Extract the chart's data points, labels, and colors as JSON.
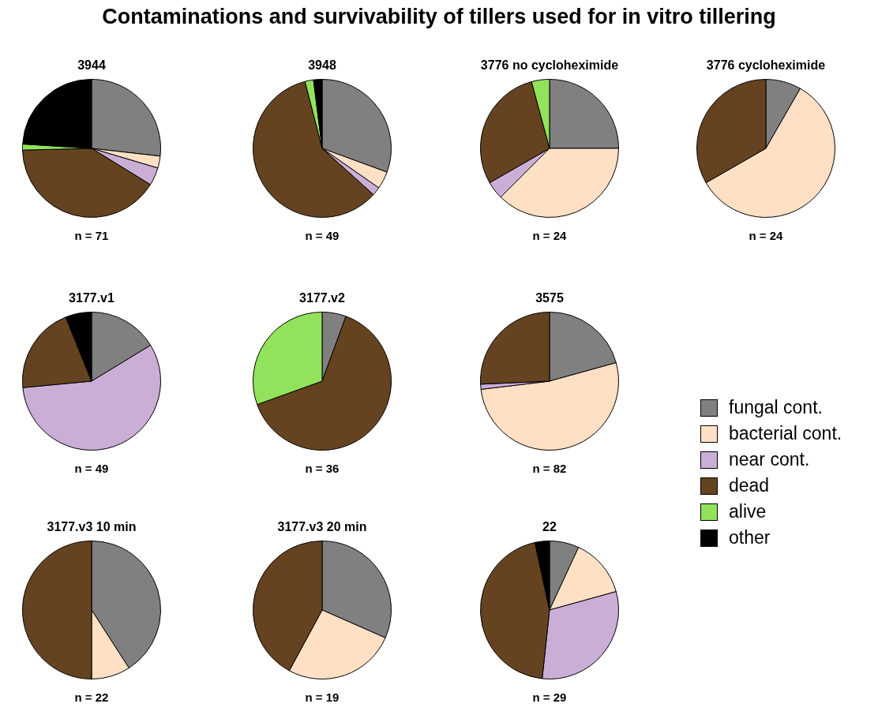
{
  "chart_data": [
    {
      "type": "pie",
      "title": "3944",
      "categories": [
        null,
        null,
        null,
        null,
        null,
        null
      ],
      "values": [
        26.8,
        2.8,
        4.2,
        40.8,
        1.4,
        24.0
      ],
      "colors": [
        "#808080",
        "#ffe0c4",
        "#cbaed6",
        "#654321",
        "#92e25c",
        "#000000"
      ],
      "annotations": [
        "n = 71"
      ],
      "legend": false
    },
    {
      "type": "pie",
      "title": "3948",
      "categories": [
        null,
        null,
        null,
        null,
        null,
        null
      ],
      "values": [
        30.6,
        4.1,
        2.0,
        59.3,
        2.0,
        2.0
      ],
      "colors": [
        "#808080",
        "#ffe0c4",
        "#cbaed6",
        "#654321",
        "#92e25c",
        "#000000"
      ],
      "annotations": [
        "n = 49"
      ],
      "legend": false
    },
    {
      "type": "pie",
      "title": "3776 no cycloheximide",
      "categories": [
        null,
        null,
        null,
        null,
        null,
        null
      ],
      "values": [
        25.0,
        37.5,
        4.2,
        29.1,
        4.2,
        0
      ],
      "colors": [
        "#808080",
        "#ffe0c4",
        "#cbaed6",
        "#654321",
        "#92e25c",
        "#000000"
      ],
      "annotations": [
        "n = 24"
      ],
      "legend": false
    },
    {
      "type": "pie",
      "title": "3776 cycloheximide",
      "categories": [
        null,
        null,
        null,
        null,
        null,
        null
      ],
      "values": [
        8.3,
        58.4,
        0,
        33.3,
        0,
        0
      ],
      "colors": [
        "#808080",
        "#ffe0c4",
        "#cbaed6",
        "#654321",
        "#92e25c",
        "#000000"
      ],
      "annotations": [
        "n = 24"
      ],
      "legend": false
    },
    {
      "type": "pie",
      "title": "3177.v1",
      "categories": [
        null,
        null,
        null,
        null,
        null,
        null
      ],
      "values": [
        16.3,
        0,
        57.2,
        20.4,
        0,
        6.1
      ],
      "colors": [
        "#808080",
        "#ffe0c4",
        "#cbaed6",
        "#654321",
        "#92e25c",
        "#000000"
      ],
      "annotations": [
        "n = 49"
      ],
      "legend": false
    },
    {
      "type": "pie",
      "title": "3177.v2",
      "categories": [
        null,
        null,
        null,
        null,
        null,
        null
      ],
      "values": [
        5.6,
        0,
        0,
        63.9,
        30.5,
        0
      ],
      "colors": [
        "#808080",
        "#ffe0c4",
        "#cbaed6",
        "#654321",
        "#92e25c",
        "#000000"
      ],
      "annotations": [
        "n = 36"
      ],
      "legend": false
    },
    {
      "type": "pie",
      "title": "3575",
      "categories": [
        "fungal cont.",
        "bacterial cont.",
        "near cont.",
        "dead",
        "alive",
        "other"
      ],
      "values": [
        20.7,
        52.4,
        1.2,
        25.7,
        0,
        0
      ],
      "colors": [
        "#808080",
        "#ffe0c4",
        "#cbaed6",
        "#654321",
        "#92e25c",
        "#000000"
      ],
      "annotations": [
        "n = 82"
      ],
      "legend": "right"
    },
    {
      "type": "pie",
      "title": "3177.v3 10 min",
      "categories": [
        null,
        null,
        null,
        null,
        null,
        null
      ],
      "values": [
        40.9,
        9.1,
        0,
        50.0,
        0,
        0
      ],
      "colors": [
        "#808080",
        "#ffe0c4",
        "#cbaed6",
        "#654321",
        "#92e25c",
        "#000000"
      ],
      "annotations": [
        "n = 22"
      ],
      "legend": false
    },
    {
      "type": "pie",
      "title": "3177.v3 20 min",
      "categories": [
        null,
        null,
        null,
        null,
        null,
        null
      ],
      "values": [
        31.6,
        26.3,
        0,
        42.1,
        0,
        0
      ],
      "colors": [
        "#808080",
        "#ffe0c4",
        "#cbaed6",
        "#654321",
        "#92e25c",
        "#000000"
      ],
      "annotations": [
        "n = 19"
      ],
      "legend": false
    },
    {
      "type": "pie",
      "title": "22",
      "subtitle": "Contaminations and survivability of tillers used for in vitro tillering",
      "categories": [
        null,
        null,
        null,
        null,
        null,
        null
      ],
      "values": [
        6.9,
        13.8,
        31.0,
        44.9,
        0,
        3.4
      ],
      "colors": [
        "#808080",
        "#ffe0c4",
        "#cbaed6",
        "#654321",
        "#92e25c",
        "#000000"
      ],
      "annotations": [
        "n = 29"
      ],
      "legend": false
    }
  ]
}
